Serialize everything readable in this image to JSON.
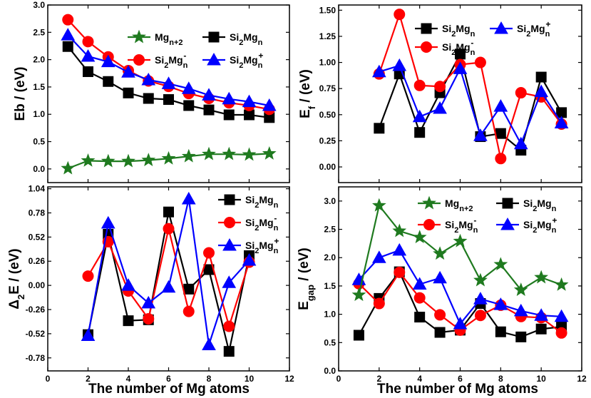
{
  "colors": {
    "black": "#000000",
    "red": "#ff0000",
    "blue": "#0000ff",
    "green": "#1f7a1f"
  },
  "xlabel": "The number of Mg atoms",
  "chart_data": [
    {
      "type": "line",
      "id": "eb",
      "ylabel_main": "Eb / (eV)",
      "ylabel_sub": "",
      "ylabel_rest": "",
      "xlim": [
        0,
        12
      ],
      "xticks": [],
      "ylim": [
        -0.25,
        3.0
      ],
      "yticks": [
        "0.0",
        "0.5",
        "1.0",
        "1.5",
        "2.0",
        "2.5",
        "3.0"
      ],
      "legend_cols": 2,
      "legend_order": [
        3,
        0,
        1,
        2
      ],
      "series": [
        {
          "name": "Si2Mgn",
          "base": "Si",
          "sub1": "2",
          "mid": "Mg",
          "sub2": "n",
          "sup": "",
          "color": "#000000",
          "marker": "square",
          "x": [
            1,
            2,
            3,
            4,
            5,
            6,
            7,
            8,
            9,
            10,
            11
          ],
          "y": [
            2.24,
            1.78,
            1.6,
            1.39,
            1.29,
            1.27,
            1.16,
            1.08,
            0.99,
            0.99,
            0.94
          ]
        },
        {
          "name": "Si2Mgn-",
          "base": "Si",
          "sub1": "2",
          "mid": "Mg",
          "sub2": "n",
          "sup": "-",
          "color": "#ff0000",
          "marker": "circle",
          "x": [
            1,
            2,
            3,
            4,
            5,
            6,
            7,
            8,
            9,
            10,
            11
          ],
          "y": [
            2.73,
            2.33,
            2.05,
            1.8,
            1.61,
            1.51,
            1.38,
            1.29,
            1.21,
            1.16,
            1.09
          ]
        },
        {
          "name": "Si2Mgn+",
          "base": "Si",
          "sub1": "2",
          "mid": "Mg",
          "sub2": "n",
          "sup": "+",
          "color": "#0000ff",
          "marker": "triangle",
          "x": [
            1,
            2,
            3,
            4,
            5,
            6,
            7,
            8,
            9,
            10,
            11
          ],
          "y": [
            2.45,
            2.06,
            1.96,
            1.77,
            1.63,
            1.56,
            1.47,
            1.35,
            1.28,
            1.23,
            1.16
          ]
        },
        {
          "name": "Mgn+2",
          "base": "Mg",
          "sub1": "n+2",
          "mid": "",
          "sub2": "",
          "sup": "",
          "color": "#1f7a1f",
          "marker": "star",
          "x": [
            1,
            2,
            3,
            4,
            5,
            6,
            7,
            8,
            9,
            10,
            11
          ],
          "y": [
            0.01,
            0.15,
            0.14,
            0.14,
            0.16,
            0.19,
            0.23,
            0.27,
            0.27,
            0.26,
            0.28
          ]
        }
      ]
    },
    {
      "type": "line",
      "id": "ef",
      "ylabel_main": "E",
      "ylabel_sub": "f",
      "ylabel_rest": " / (eV)",
      "xlim": [
        0,
        12
      ],
      "xticks": [],
      "ylim": [
        -0.15,
        1.55
      ],
      "yticks": [
        "0.00",
        "0.25",
        "0.50",
        "0.75",
        "1.00",
        "1.25",
        "1.50"
      ],
      "legend_cols": 2,
      "legend_order": [
        0,
        2,
        1
      ],
      "series": [
        {
          "name": "Si2Mgn",
          "base": "Si",
          "sub1": "2",
          "mid": "Mg",
          "sub2": "n",
          "sup": "",
          "color": "#000000",
          "marker": "square",
          "x": [
            2,
            3,
            4,
            5,
            6,
            7,
            8,
            9,
            10,
            11
          ],
          "y": [
            0.37,
            0.89,
            0.33,
            0.71,
            1.08,
            0.29,
            0.32,
            0.16,
            0.86,
            0.52
          ]
        },
        {
          "name": "Si2Mgn-",
          "base": "Si",
          "sub1": "2",
          "mid": "Mg",
          "sub2": "n",
          "sup": "-",
          "color": "#ff0000",
          "marker": "circle",
          "x": [
            2,
            3,
            4,
            5,
            6,
            7,
            8,
            9,
            10,
            11
          ],
          "y": [
            0.89,
            1.46,
            0.78,
            0.77,
            0.98,
            1.0,
            0.08,
            0.71,
            0.67,
            0.41
          ]
        },
        {
          "name": "Si2Mgn+",
          "base": "Si",
          "sub1": "2",
          "mid": "Mg",
          "sub2": "n",
          "sup": "+",
          "color": "#0000ff",
          "marker": "triangle",
          "x": [
            2,
            3,
            4,
            5,
            6,
            7,
            8,
            9,
            10,
            11
          ],
          "y": [
            0.91,
            0.97,
            0.48,
            0.56,
            0.94,
            0.3,
            0.58,
            0.22,
            0.72,
            0.42
          ]
        }
      ]
    },
    {
      "type": "line",
      "id": "d2e",
      "ylabel_main": "Δ",
      "ylabel_sub": "2",
      "ylabel_rest": "E / (eV)",
      "xlim": [
        0,
        12
      ],
      "xticks": [
        "0",
        "2",
        "4",
        "6",
        "8",
        "10",
        "12"
      ],
      "ylim": [
        -0.92,
        1.06
      ],
      "yticks": [
        "-0.78",
        "-0.52",
        "-0.26",
        "0.00",
        "0.26",
        "0.52",
        "0.78",
        "1.04"
      ],
      "legend_cols": 1,
      "legend_order": [
        0,
        1,
        2
      ],
      "series": [
        {
          "name": "Si2Mgn",
          "base": "Si",
          "sub1": "2",
          "mid": "Mg",
          "sub2": "n",
          "sup": "",
          "color": "#000000",
          "marker": "square",
          "x": [
            2,
            3,
            4,
            5,
            6,
            7,
            8,
            9,
            10
          ],
          "y": [
            -0.53,
            0.55,
            -0.38,
            -0.37,
            0.79,
            -0.04,
            0.17,
            -0.71,
            0.32
          ]
        },
        {
          "name": "Si2Mgn-",
          "base": "Si",
          "sub1": "2",
          "mid": "Mg",
          "sub2": "n",
          "sup": "-",
          "color": "#ff0000",
          "marker": "circle",
          "x": [
            2,
            3,
            4,
            5,
            6,
            7,
            8,
            9,
            10
          ],
          "y": [
            0.1,
            0.47,
            -0.06,
            -0.36,
            0.61,
            -0.28,
            0.35,
            -0.44,
            0.25
          ]
        },
        {
          "name": "Si2Mgn+",
          "base": "Si",
          "sub1": "2",
          "mid": "Mg",
          "sub2": "n",
          "sup": "+",
          "color": "#0000ff",
          "marker": "triangle",
          "x": [
            2,
            3,
            4,
            5,
            6,
            7,
            8,
            9,
            10
          ],
          "y": [
            -0.54,
            0.67,
            0.0,
            -0.19,
            -0.02,
            0.93,
            -0.64,
            0.03,
            0.27
          ]
        }
      ]
    },
    {
      "type": "line",
      "id": "egap",
      "ylabel_main": "E",
      "ylabel_sub": "gap",
      "ylabel_rest": " / (eV)",
      "xlim": [
        0,
        12
      ],
      "xticks": [
        "0",
        "2",
        "4",
        "6",
        "8",
        "10",
        "12"
      ],
      "ylim": [
        0.0,
        3.25
      ],
      "yticks": [
        "0.0",
        "0.5",
        "1.0",
        "1.5",
        "2.0",
        "2.5",
        "3.0"
      ],
      "legend_cols": 2,
      "legend_order": [
        3,
        0,
        1,
        2
      ],
      "series": [
        {
          "name": "Si2Mgn",
          "base": "Si",
          "sub1": "2",
          "mid": "Mg",
          "sub2": "n",
          "sup": "",
          "color": "#000000",
          "marker": "square",
          "x": [
            1,
            2,
            3,
            4,
            5,
            6,
            7,
            8,
            9,
            10,
            11
          ],
          "y": [
            0.63,
            1.28,
            1.75,
            0.95,
            0.68,
            0.72,
            1.19,
            0.69,
            0.6,
            0.74,
            0.78
          ]
        },
        {
          "name": "Si2Mgn-",
          "base": "Si",
          "sub1": "2",
          "mid": "Mg",
          "sub2": "n",
          "sup": "-",
          "color": "#ff0000",
          "marker": "circle",
          "x": [
            1,
            2,
            3,
            4,
            5,
            6,
            7,
            8,
            9,
            10,
            11
          ],
          "y": [
            1.54,
            1.19,
            1.74,
            1.29,
            0.99,
            0.72,
            0.98,
            1.16,
            0.96,
            0.94,
            0.67
          ]
        },
        {
          "name": "Si2Mgn+",
          "base": "Si",
          "sub1": "2",
          "mid": "Mg",
          "sub2": "n",
          "sup": "+",
          "color": "#0000ff",
          "marker": "triangle",
          "x": [
            1,
            2,
            3,
            4,
            5,
            6,
            7,
            8,
            9,
            10,
            11
          ],
          "y": [
            1.61,
            2.0,
            2.13,
            1.53,
            1.64,
            0.83,
            1.27,
            1.17,
            1.06,
            0.98,
            0.96
          ]
        },
        {
          "name": "Mgn+2",
          "base": "Mg",
          "sub1": "n+2",
          "mid": "",
          "sub2": "",
          "sup": "",
          "color": "#1f7a1f",
          "marker": "star",
          "x": [
            1,
            2,
            3,
            4,
            5,
            6,
            7,
            8,
            9,
            10,
            11
          ],
          "y": [
            1.34,
            2.92,
            2.47,
            2.36,
            2.07,
            2.29,
            1.6,
            1.88,
            1.43,
            1.65,
            1.52
          ]
        }
      ]
    }
  ]
}
